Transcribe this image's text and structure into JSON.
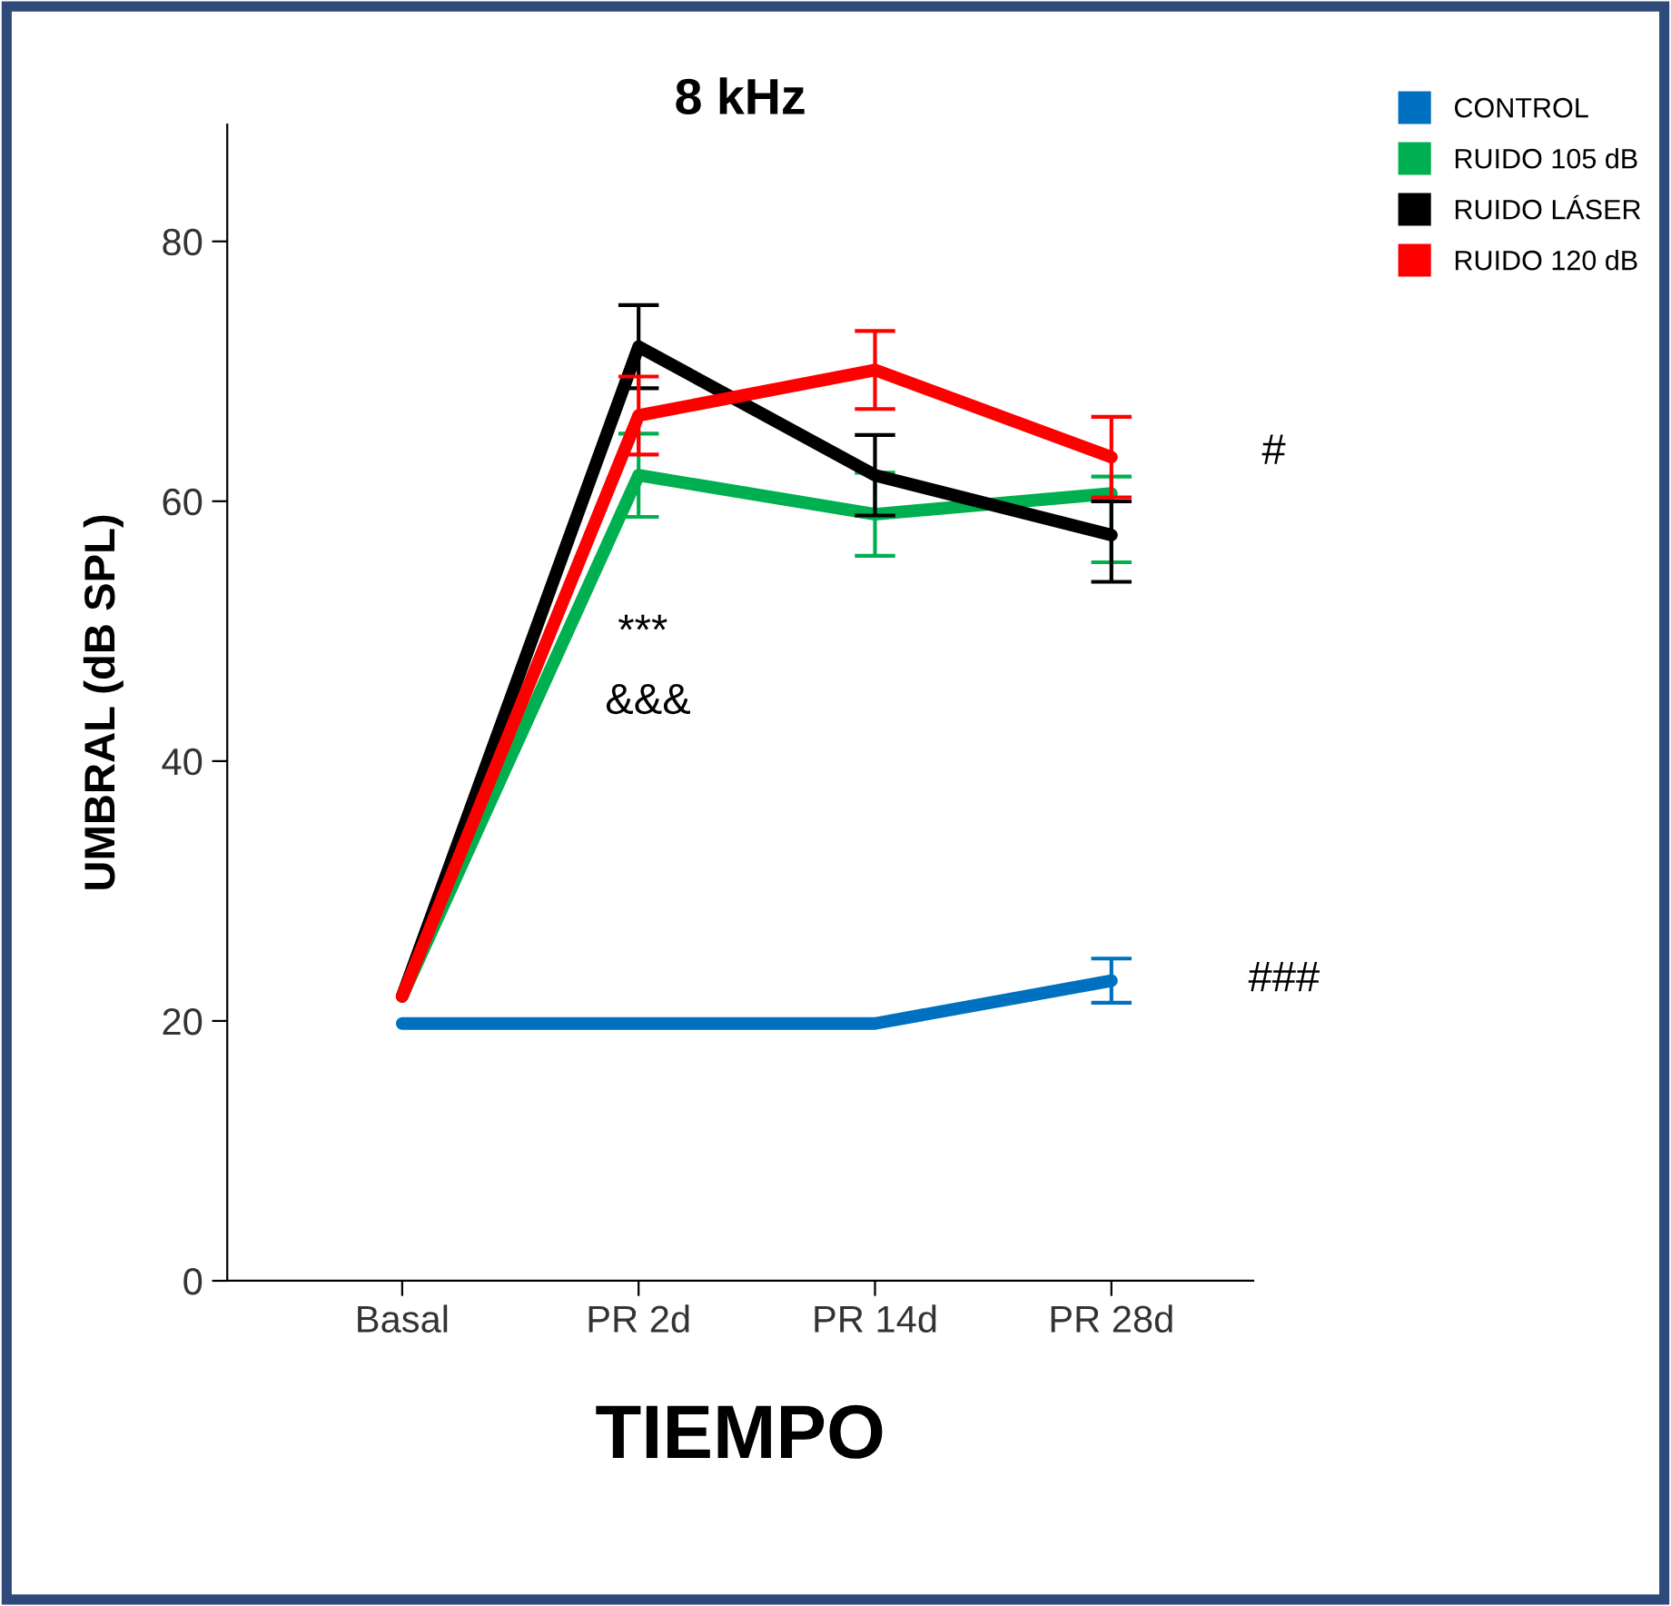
{
  "chart_data": {
    "type": "line",
    "title": "8 kHz",
    "xlabel": "TIEMPO",
    "ylabel": "UMBRAL (dB SPL)",
    "categories": [
      "Basal",
      "PR 2d",
      "PR 14d",
      "PR 28d"
    ],
    "ylim": [
      0,
      89
    ],
    "yticks": [
      0,
      20,
      40,
      60,
      80
    ],
    "grid": false,
    "legend": "top right",
    "marker": "none",
    "line_style": "solid",
    "series": [
      {
        "name": "CONTROL",
        "color": "#0070c0",
        "values": [
          19.8,
          19.8,
          19.8,
          23.1
        ],
        "errors": [
          null,
          null,
          null,
          1.7
        ]
      },
      {
        "name": "RUIDO 105 dB",
        "color": "#00b050",
        "values": [
          21.9,
          62.0,
          59.0,
          60.6
        ],
        "errors": [
          null,
          3.2,
          3.2,
          [
            55.3,
            61.9
          ]
        ]
      },
      {
        "name": "RUIDO LÁSER",
        "color": "#000000",
        "values": [
          21.9,
          71.9,
          62.0,
          57.4
        ],
        "errors": [
          null,
          3.2,
          3.1,
          [
            53.8,
            60.0
          ]
        ]
      },
      {
        "name": "RUIDO 120 dB",
        "color": "#ff0000",
        "values": [
          21.9,
          66.6,
          70.1,
          63.4
        ],
        "errors": [
          null,
          3.0,
          3.0,
          [
            60.3,
            66.5
          ]
        ]
      }
    ],
    "annotations": [
      "***",
      "&&&",
      "#",
      "###"
    ]
  }
}
